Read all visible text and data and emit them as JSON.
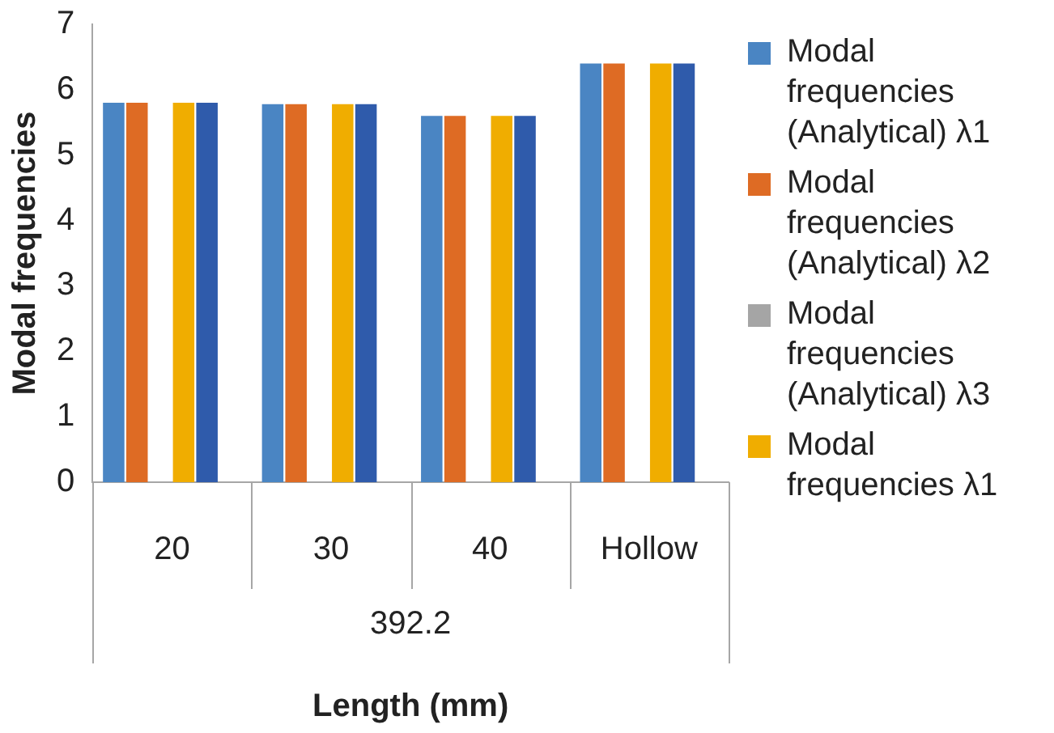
{
  "chart_data": {
    "type": "bar",
    "categories": [
      "20",
      "30",
      "40",
      "Hollow"
    ],
    "xlabel": "Length (mm)",
    "ylabel": "Modal frequencies",
    "ylim": [
      0,
      7
    ],
    "yticks": [
      0,
      1,
      2,
      3,
      4,
      5,
      6,
      7
    ],
    "grid": false,
    "legend": "right",
    "annotations": [
      "392.2"
    ],
    "series": [
      {
        "name": "Modal frequencies (Analytical) λ1",
        "color": "#4a85c3",
        "values": [
          5.8,
          5.78,
          5.6,
          6.4
        ]
      },
      {
        "name": "Modal frequencies (Analytical) λ2",
        "color": "#de6b24",
        "values": [
          5.8,
          5.78,
          5.6,
          6.4
        ]
      },
      {
        "name": "Modal frequencies (Analytical) λ3",
        "color": "#a5a5a5",
        "values": [
          0,
          0,
          0,
          0
        ]
      },
      {
        "name": "Modal frequencies λ1",
        "color": "#f0ad00",
        "values": [
          5.8,
          5.78,
          5.6,
          6.4
        ]
      },
      {
        "color": "#2f5bab",
        "values": [
          5.8,
          5.78,
          5.6,
          6.4
        ]
      },
      {
        "color": "#6aa444",
        "values": [
          0,
          0,
          0,
          0
        ]
      }
    ]
  }
}
